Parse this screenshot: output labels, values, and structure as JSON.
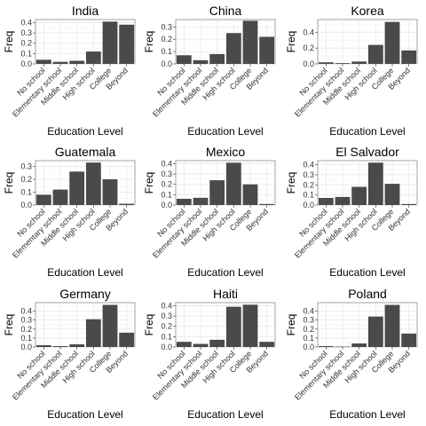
{
  "chart_data": [
    {
      "type": "bar",
      "title": "India",
      "xlabel": "Education Level",
      "ylabel": "Freq",
      "categories": [
        "No school",
        "Elementary school",
        "Middle school",
        "High school",
        "College",
        "Beyond"
      ],
      "values": [
        0.04,
        0.02,
        0.03,
        0.12,
        0.41,
        0.38
      ],
      "ylim": [
        0,
        0.43
      ],
      "yticks": [
        "0.0",
        "0.1",
        "0.2",
        "0.3",
        "0.4"
      ],
      "ytick_values": [
        0,
        0.1,
        0.2,
        0.3,
        0.4
      ],
      "bar_color": "#4a4a4a",
      "grid": true
    },
    {
      "type": "bar",
      "title": "China",
      "xlabel": "Education Level",
      "ylabel": "Freq",
      "categories": [
        "No school",
        "Elementary school",
        "Middle school",
        "High school",
        "College",
        "Beyond"
      ],
      "values": [
        0.07,
        0.03,
        0.08,
        0.25,
        0.35,
        0.22
      ],
      "ylim": [
        0,
        0.36
      ],
      "yticks": [
        "0.0",
        "0.1",
        "0.2",
        "0.3"
      ],
      "ytick_values": [
        0,
        0.1,
        0.2,
        0.3
      ],
      "bar_color": "#4a4a4a",
      "grid": true
    },
    {
      "type": "bar",
      "title": "Korea",
      "xlabel": "Education Level",
      "ylabel": "Freq",
      "categories": [
        "No school",
        "Elementary school",
        "Middle school",
        "High school",
        "College",
        "Beyond"
      ],
      "values": [
        0.02,
        0.01,
        0.03,
        0.24,
        0.53,
        0.17
      ],
      "ylim": [
        0,
        0.56
      ],
      "yticks": [
        "0.0",
        "0.2",
        "0.4"
      ],
      "ytick_values": [
        0,
        0.2,
        0.4
      ],
      "bar_color": "#4a4a4a",
      "grid": true
    },
    {
      "type": "bar",
      "title": "Guatemala",
      "xlabel": "Education Level",
      "ylabel": "Freq",
      "categories": [
        "No school",
        "Elementary school",
        "Middle school",
        "High school",
        "College",
        "Beyond"
      ],
      "values": [
        0.08,
        0.12,
        0.26,
        0.33,
        0.2,
        0.01
      ],
      "ylim": [
        0,
        0.345
      ],
      "yticks": [
        "0.0",
        "0.1",
        "0.2",
        "0.3"
      ],
      "ytick_values": [
        0,
        0.1,
        0.2,
        0.3
      ],
      "bar_color": "#4a4a4a",
      "grid": true
    },
    {
      "type": "bar",
      "title": "Mexico",
      "xlabel": "Education Level",
      "ylabel": "Freq",
      "categories": [
        "No school",
        "Elementary school",
        "Middle school",
        "High school",
        "College",
        "Beyond"
      ],
      "values": [
        0.06,
        0.07,
        0.24,
        0.41,
        0.2,
        0.01
      ],
      "ylim": [
        0,
        0.43
      ],
      "yticks": [
        "0.0",
        "0.1",
        "0.2",
        "0.3",
        "0.4"
      ],
      "ytick_values": [
        0,
        0.1,
        0.2,
        0.3,
        0.4
      ],
      "bar_color": "#4a4a4a",
      "grid": true
    },
    {
      "type": "bar",
      "title": "El Salvador",
      "xlabel": "Education Level",
      "ylabel": "Freq",
      "categories": [
        "No school",
        "Elementary school",
        "Middle school",
        "High school",
        "College",
        "Beyond"
      ],
      "values": [
        0.07,
        0.08,
        0.18,
        0.42,
        0.21,
        0.01
      ],
      "ylim": [
        0,
        0.44
      ],
      "yticks": [
        "0.0",
        "0.1",
        "0.2",
        "0.3",
        "0.4"
      ],
      "ytick_values": [
        0,
        0.1,
        0.2,
        0.3,
        0.4
      ],
      "bar_color": "#4a4a4a",
      "grid": true
    },
    {
      "type": "bar",
      "title": "Germany",
      "xlabel": "Education Level",
      "ylabel": "Freq",
      "categories": [
        "No school",
        "Elementary school",
        "Middle school",
        "High school",
        "College",
        "Beyond"
      ],
      "values": [
        0.02,
        0.01,
        0.03,
        0.31,
        0.47,
        0.16
      ],
      "ylim": [
        0,
        0.495
      ],
      "yticks": [
        "0.0",
        "0.1",
        "0.2",
        "0.3",
        "0.4"
      ],
      "ytick_values": [
        0,
        0.1,
        0.2,
        0.3,
        0.4
      ],
      "bar_color": "#4a4a4a",
      "grid": true
    },
    {
      "type": "bar",
      "title": "Haiti",
      "xlabel": "Education Level",
      "ylabel": "Freq",
      "categories": [
        "No school",
        "Elementary school",
        "Middle school",
        "High school",
        "College",
        "Beyond"
      ],
      "values": [
        0.05,
        0.03,
        0.07,
        0.39,
        0.41,
        0.05
      ],
      "ylim": [
        0,
        0.43
      ],
      "yticks": [
        "0.0",
        "0.1",
        "0.2",
        "0.3",
        "0.4"
      ],
      "ytick_values": [
        0,
        0.1,
        0.2,
        0.3,
        0.4
      ],
      "bar_color": "#4a4a4a",
      "grid": true
    },
    {
      "type": "bar",
      "title": "Poland",
      "xlabel": "Education Level",
      "ylabel": "Freq",
      "categories": [
        "No school",
        "Elementary school",
        "Middle school",
        "High school",
        "College",
        "Beyond"
      ],
      "values": [
        0.01,
        0.005,
        0.04,
        0.34,
        0.47,
        0.15
      ],
      "ylim": [
        0,
        0.495
      ],
      "yticks": [
        "0.0",
        "0.1",
        "0.2",
        "0.3",
        "0.4"
      ],
      "ytick_values": [
        0,
        0.1,
        0.2,
        0.3,
        0.4
      ],
      "bar_color": "#4a4a4a",
      "grid": true
    }
  ]
}
